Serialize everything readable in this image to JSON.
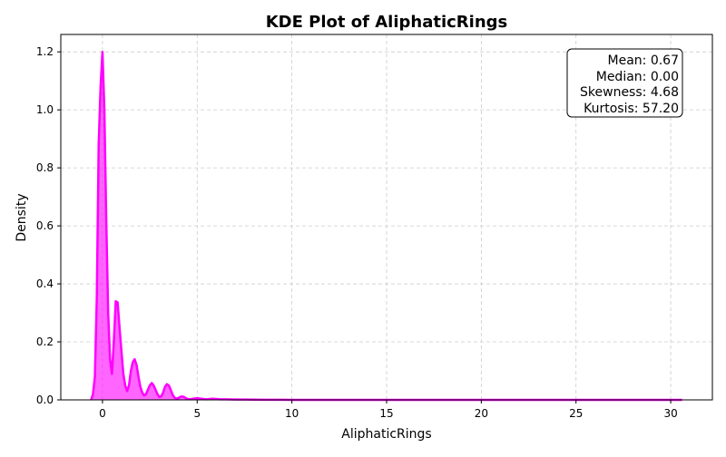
{
  "chart_data": {
    "type": "area",
    "title": "KDE Plot of AliphaticRings",
    "xlabel": "AliphaticRings",
    "ylabel": "Density",
    "xlim": [
      -2.2,
      32.2
    ],
    "ylim": [
      0,
      1.26
    ],
    "xticks": [
      0,
      5,
      10,
      15,
      20,
      25,
      30
    ],
    "yticks": [
      0.0,
      0.2,
      0.4,
      0.6,
      0.8,
      1.0,
      1.2
    ],
    "grid": true,
    "color": "#ff00ff",
    "series": [
      {
        "x": [
          -0.6,
          -0.5,
          -0.4,
          -0.3,
          -0.2,
          -0.1,
          0.0,
          0.1,
          0.2,
          0.3,
          0.4,
          0.5,
          0.6,
          0.7,
          0.8,
          0.9,
          1.0,
          1.1,
          1.2,
          1.3,
          1.4,
          1.5,
          1.6,
          1.7,
          1.8,
          1.9,
          2.0,
          2.1,
          2.2,
          2.3,
          2.4,
          2.5,
          2.6,
          2.7,
          2.8,
          2.9,
          3.0,
          3.1,
          3.2,
          3.3,
          3.4,
          3.5,
          3.6,
          3.7,
          3.8,
          3.9,
          4.0,
          4.1,
          4.2,
          4.3,
          4.4,
          4.5,
          4.6,
          4.8,
          5.0,
          5.2,
          5.5,
          5.8,
          6.0,
          6.2,
          6.5,
          7.0,
          7.5,
          8.0,
          8.5,
          9.0,
          9.5,
          10.0,
          11.0,
          12.0,
          14.0,
          16.0,
          18.0,
          20.0,
          22.0,
          24.0,
          26.0,
          28.0,
          30.0,
          30.6
        ],
        "y": [
          0.0,
          0.02,
          0.08,
          0.35,
          0.88,
          1.08,
          1.2,
          1.0,
          0.62,
          0.3,
          0.14,
          0.09,
          0.2,
          0.34,
          0.336,
          0.25,
          0.17,
          0.09,
          0.05,
          0.03,
          0.05,
          0.1,
          0.13,
          0.14,
          0.12,
          0.08,
          0.045,
          0.025,
          0.015,
          0.02,
          0.035,
          0.05,
          0.058,
          0.05,
          0.035,
          0.02,
          0.01,
          0.012,
          0.025,
          0.045,
          0.054,
          0.05,
          0.035,
          0.018,
          0.008,
          0.004,
          0.006,
          0.01,
          0.012,
          0.01,
          0.006,
          0.003,
          0.002,
          0.004,
          0.006,
          0.004,
          0.002,
          0.004,
          0.003,
          0.002,
          0.002,
          0.001,
          0.001,
          0.0008,
          0.0005,
          0.0005,
          0.0003,
          0.0002,
          0.0001,
          0.0001,
          0.0001,
          0.0001,
          0.0,
          0.0,
          0.0,
          0.0,
          0.0,
          0.0,
          0.0,
          0.0
        ]
      }
    ],
    "annotation": {
      "lines": [
        "Mean: 0.67",
        "Median: 0.00",
        "Skewness: 4.68",
        "Kurtosis: 57.20"
      ]
    }
  }
}
